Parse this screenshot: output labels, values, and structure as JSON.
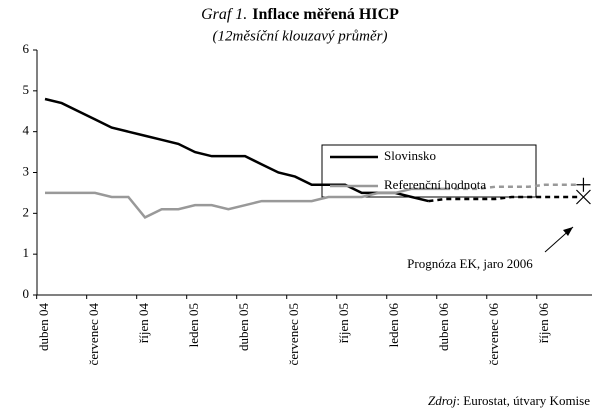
{
  "chart_data": {
    "type": "line",
    "title_prefix": "Graf 1.",
    "title": "Inflace měřená HICP",
    "subtitle": "(12měsíční klouzavý průměr)",
    "categories": [
      "duben 04",
      null,
      null,
      "červenec 04",
      null,
      null,
      "říjen 04",
      null,
      null,
      "leden 05",
      null,
      null,
      "duben 05",
      null,
      null,
      "červenec 05",
      null,
      null,
      "říjen 05",
      null,
      null,
      "leden 06",
      null,
      null,
      "duben 06",
      null,
      null,
      "červenec 06",
      null,
      null,
      "říjen 06",
      null,
      null
    ],
    "series": [
      {
        "name": "Slovinsko",
        "color": "#000000",
        "values": [
          4.8,
          4.7,
          4.5,
          4.3,
          4.1,
          4.0,
          3.9,
          3.8,
          3.7,
          3.5,
          3.4,
          3.4,
          3.4,
          3.2,
          3.0,
          2.9,
          2.7,
          2.7,
          2.7,
          2.5,
          2.5,
          2.5,
          2.4,
          2.3,
          null,
          null,
          null,
          null,
          null,
          null,
          null,
          null,
          null
        ]
      },
      {
        "name": "Referenční hodnota",
        "color": "#999999",
        "values": [
          2.5,
          2.5,
          2.5,
          2.5,
          2.4,
          2.4,
          1.9,
          2.1,
          2.1,
          2.2,
          2.2,
          2.1,
          2.2,
          2.3,
          2.3,
          2.3,
          2.3,
          2.4,
          2.4,
          2.4,
          2.5,
          2.5,
          2.6,
          2.6,
          2.6,
          null,
          null,
          null,
          null,
          null,
          null,
          null,
          null
        ]
      },
      {
        "color": "#000000",
        "dashed": true,
        "marker": "x",
        "values": [
          null,
          null,
          null,
          null,
          null,
          null,
          null,
          null,
          null,
          null,
          null,
          null,
          null,
          null,
          null,
          null,
          null,
          null,
          null,
          null,
          null,
          null,
          null,
          2.3,
          2.35,
          2.35,
          2.35,
          2.35,
          2.4,
          2.4,
          2.4,
          2.4,
          2.4
        ]
      },
      {
        "color": "#999999",
        "dashed": true,
        "marker": "plus",
        "values": [
          null,
          null,
          null,
          null,
          null,
          null,
          null,
          null,
          null,
          null,
          null,
          null,
          null,
          null,
          null,
          null,
          null,
          null,
          null,
          null,
          null,
          null,
          null,
          null,
          2.6,
          2.6,
          2.6,
          2.65,
          2.65,
          2.65,
          2.7,
          2.7,
          2.7
        ]
      }
    ],
    "ylim": [
      0,
      6
    ],
    "yticks": [
      0,
      1,
      2,
      3,
      4,
      5,
      6
    ],
    "annotation": "Prognóza EK, jaro 2006",
    "source_label": "Zdroj",
    "source": ": Eurostat, útvary Komise"
  }
}
